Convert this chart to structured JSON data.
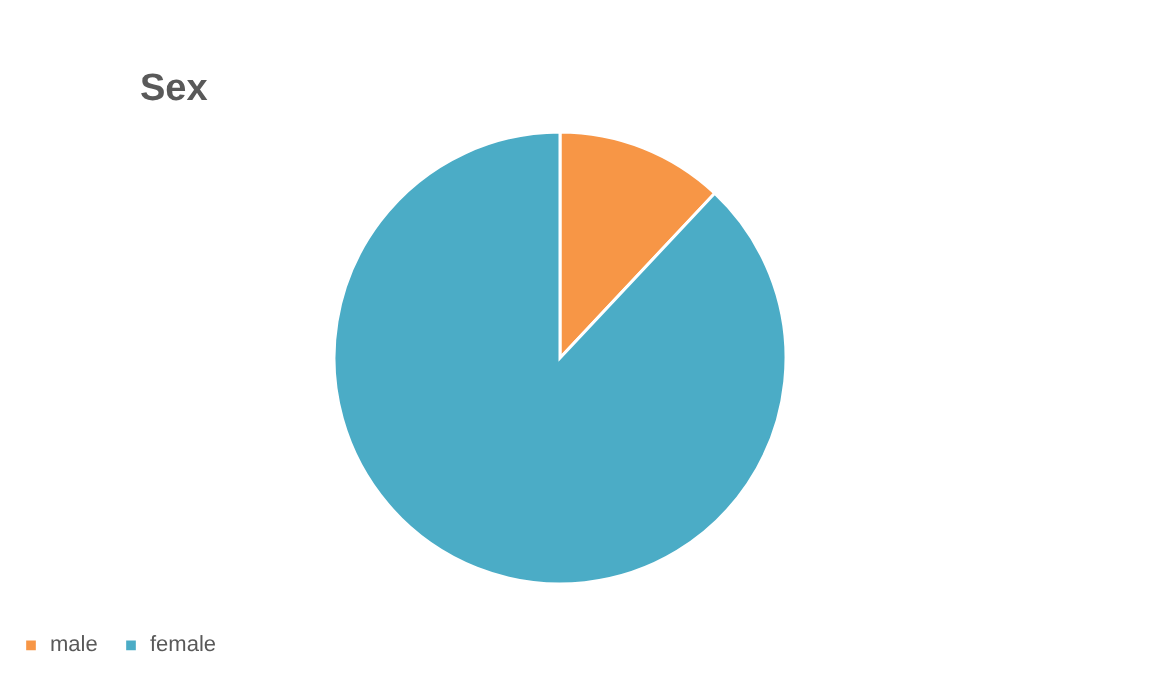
{
  "chart_data": {
    "type": "pie",
    "title": "Sex",
    "categories": [
      "male",
      "female"
    ],
    "values": [
      12,
      88
    ],
    "colors": [
      "#f79646",
      "#4bacc6"
    ],
    "legend": "bottom"
  }
}
